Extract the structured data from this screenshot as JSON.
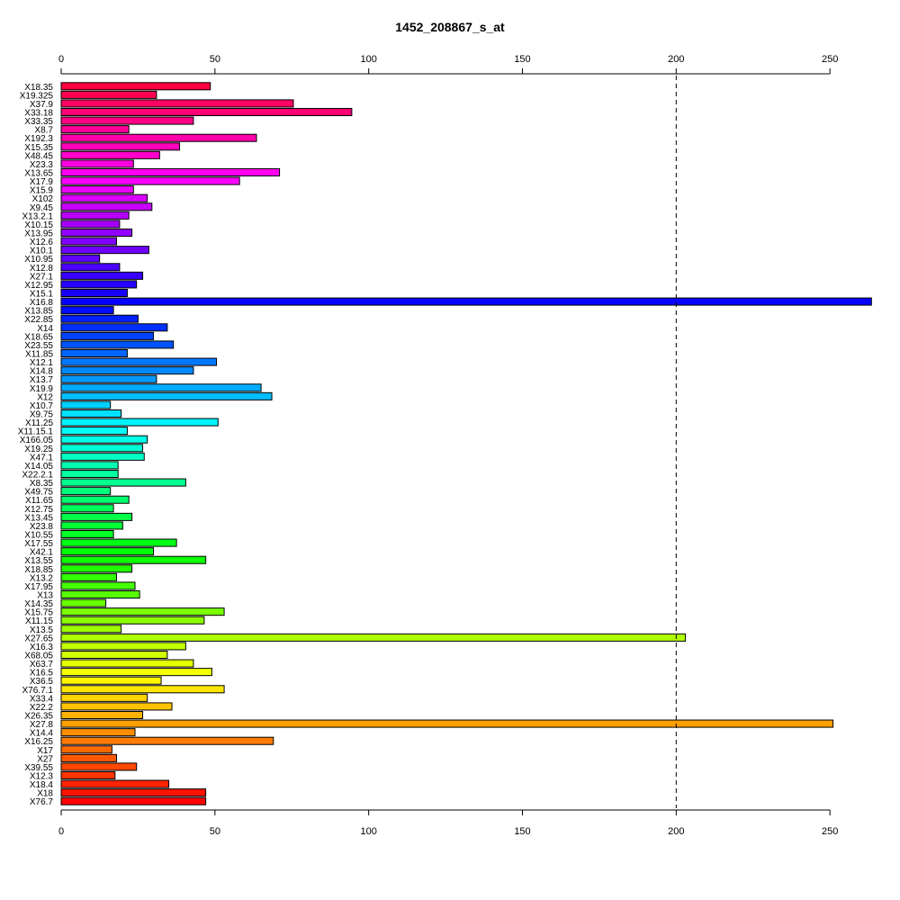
{
  "chart_data": {
    "type": "bar",
    "orientation": "horizontal",
    "title": "1452_208867_s_at",
    "xlabel": "",
    "ylabel": "",
    "xlim": [
      0,
      264
    ],
    "x_ticks": [
      0,
      50,
      100,
      150,
      200,
      250
    ],
    "x_tick_labels": [
      "0",
      "50",
      "100",
      "150",
      "200",
      "250"
    ],
    "reference_line": 200,
    "grid": false,
    "categories": [
      "X18.35",
      "X19.325",
      "X37.9",
      "X33.18",
      "X33.35",
      "X8.7",
      "X192.3",
      "X15.35",
      "X48.45",
      "X23.3",
      "X13.65",
      "X17.9",
      "X15.9",
      "X102",
      "X9.45",
      "X13.2.1",
      "X10.15",
      "X13.95",
      "X12.6",
      "X10.1",
      "X10.95",
      "X12.8",
      "X27.1",
      "X12.95",
      "X15.1",
      "X16.8",
      "X13.85",
      "X22.85",
      "X14",
      "X18.65",
      "X23.55",
      "X11.85",
      "X12.1",
      "X14.8",
      "X13.7",
      "X19.9",
      "X12",
      "X10.7",
      "X9.75",
      "X11.25",
      "X11.15.1",
      "X166.05",
      "X19.25",
      "X47.1",
      "X14.05",
      "X22.2.1",
      "X8.35",
      "X49.75",
      "X11.65",
      "X12.75",
      "X13.45",
      "X23.8",
      "X10.55",
      "X17.55",
      "X42.1",
      "X13.55",
      "X18.85",
      "X13.2",
      "X17.95",
      "X13",
      "X14.35",
      "X15.75",
      "X11.15",
      "X13.5",
      "X27.65",
      "X16.3",
      "X68.05",
      "X63.7",
      "X16.5",
      "X36.5",
      "X76.7.1",
      "X33.4",
      "X22.2",
      "X26.35",
      "X27.8",
      "X14.4",
      "X16.25",
      "X17",
      "X27",
      "X39.55",
      "X12.3",
      "X18.4",
      "X18",
      "X76.7"
    ],
    "values": [
      48.5,
      31,
      75.5,
      94.5,
      43,
      22,
      63.5,
      38.5,
      32,
      23.5,
      71,
      58,
      23.5,
      28,
      29.5,
      22,
      19,
      23,
      18,
      28.5,
      12.5,
      19,
      26.5,
      24.5,
      21.5,
      263.5,
      17,
      25,
      34.5,
      30,
      36.5,
      21.5,
      50.5,
      43,
      31,
      65,
      68.5,
      16,
      19.5,
      51,
      21.5,
      28,
      26.5,
      27,
      18.5,
      18.5,
      40.5,
      16,
      22,
      17,
      23,
      20,
      17,
      37.5,
      30,
      47,
      23,
      18,
      24,
      25.5,
      14.5,
      53,
      46.5,
      19.5,
      203,
      40.5,
      34.5,
      43,
      49,
      32.5,
      53,
      28,
      36,
      26.5,
      251,
      24,
      69,
      16.5,
      18,
      24.5,
      17.5,
      35,
      47,
      47
    ]
  }
}
